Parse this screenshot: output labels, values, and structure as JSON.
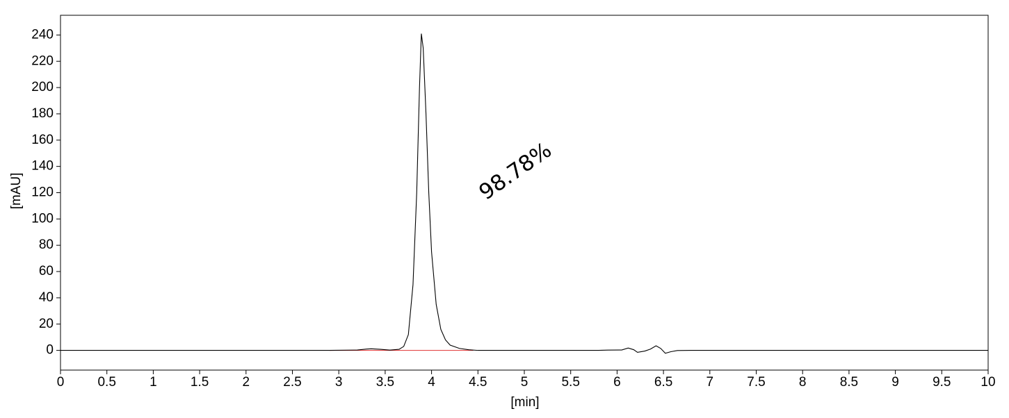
{
  "chart_data": {
    "type": "line",
    "x_label": "[min]",
    "y_label": "[mAU]",
    "annotation": "98.78%",
    "x": [
      0,
      2.9,
      3.2,
      3.3,
      3.35,
      3.45,
      3.55,
      3.65,
      3.7,
      3.75,
      3.8,
      3.84,
      3.87,
      3.89,
      3.91,
      3.94,
      3.97,
      4.0,
      4.05,
      4.1,
      4.15,
      4.2,
      4.3,
      4.4,
      4.5,
      5.8,
      5.9,
      6.05,
      6.12,
      6.18,
      6.22,
      6.3,
      6.36,
      6.42,
      6.47,
      6.52,
      6.58,
      6.65,
      6.8,
      10
    ],
    "values": [
      0,
      0,
      0.3,
      1,
      1.2,
      0.8,
      0.2,
      0.8,
      3,
      12,
      50,
      120,
      200,
      241,
      230,
      180,
      120,
      75,
      35,
      16,
      8,
      4,
      1.5,
      0.5,
      0,
      0,
      0.2,
      0.3,
      1.8,
      0.5,
      -1.5,
      -0.5,
      1,
      3.5,
      1.5,
      -2.2,
      -1,
      -0.1,
      0,
      0
    ],
    "color": "#000000",
    "integration_baseline": {
      "x": [
        2.9,
        4.45
      ],
      "values": [
        0,
        0
      ],
      "color": "#e03030"
    },
    "xlim": [
      0,
      10
    ],
    "ylim": [
      -15,
      255
    ],
    "xticks": [
      0,
      0.5,
      1,
      1.5,
      2,
      2.5,
      3,
      3.5,
      4,
      4.5,
      5,
      5.5,
      6,
      6.5,
      7,
      7.5,
      8,
      8.5,
      9,
      9.5,
      10
    ],
    "yticks": [
      0,
      20,
      40,
      60,
      80,
      100,
      120,
      140,
      160,
      180,
      200,
      220,
      240
    ]
  }
}
